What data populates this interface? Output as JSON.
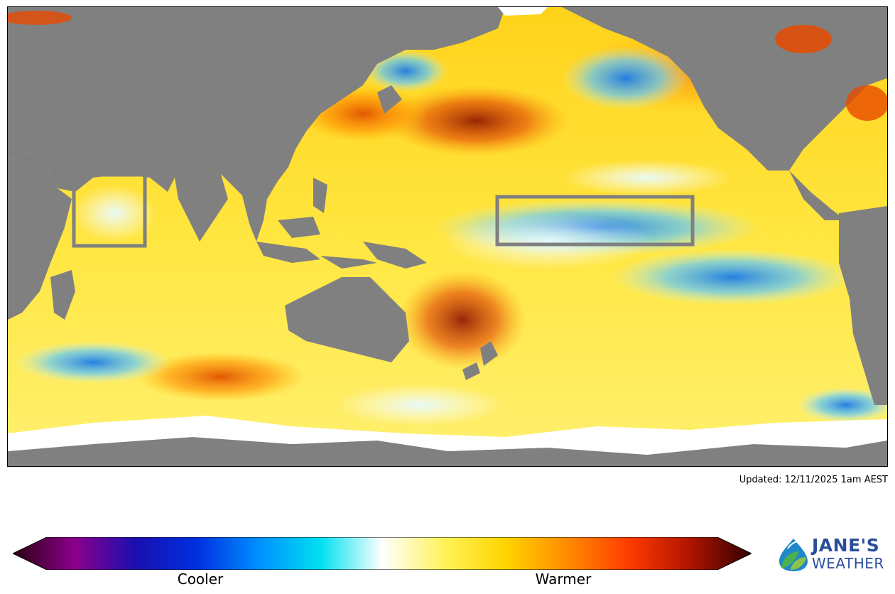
{
  "map": {
    "type": "sea-surface-temperature-anomaly",
    "region": "Indian and Pacific Oceans",
    "land_color": "#808080",
    "ice_color": "#ffffff",
    "highlight_boxes": [
      {
        "name": "western-indian-ocean-box",
        "color": "#808080"
      },
      {
        "name": "nino-3-4-box",
        "color": "#808080"
      }
    ]
  },
  "updated_text": "Updated: 12/11/2025 1am AEST",
  "colorbar": {
    "stops": [
      "#2a0010",
      "#8b008b",
      "#1a0fb0",
      "#0030e0",
      "#0090ff",
      "#00e0f0",
      "#ffffff",
      "#fff35a",
      "#ffd400",
      "#ff8c00",
      "#ff3c00",
      "#b01400",
      "#300000"
    ],
    "label_cool": "Cooler",
    "label_warm": "Warmer"
  },
  "logo": {
    "line1": "JANE'S",
    "line2": "WEATHER",
    "text_color": "#2b4e9b",
    "icon": "leaf-drop-icon"
  }
}
